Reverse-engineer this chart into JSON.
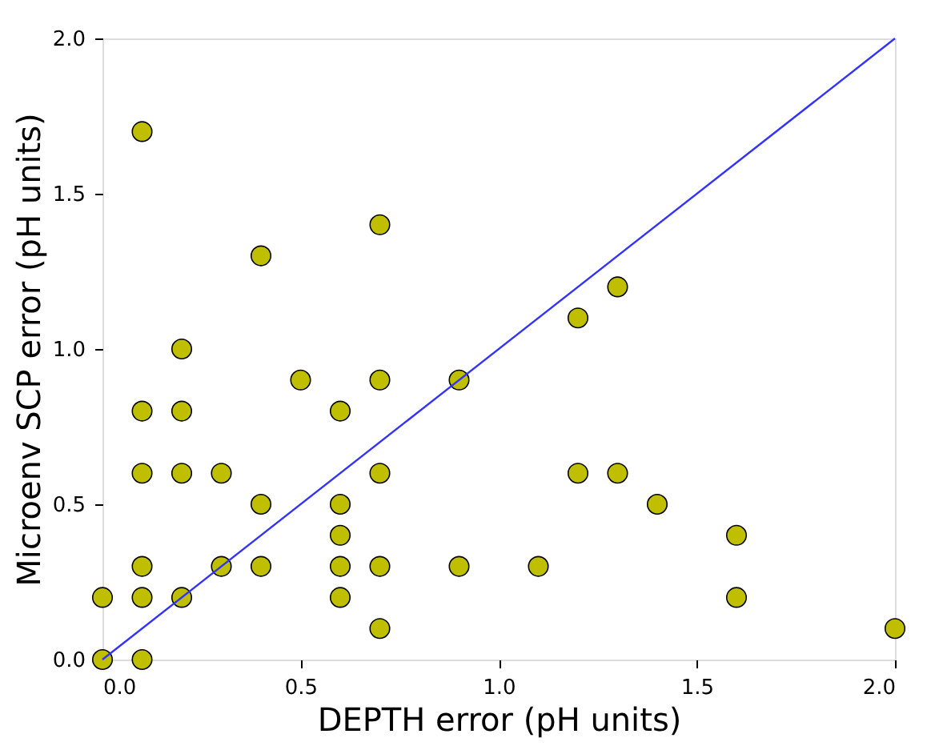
{
  "chart_data": {
    "type": "scatter",
    "xlabel": "DEPTH error (pH units)",
    "ylabel": "Microenv SCP error (pH units)",
    "xlim": [
      0,
      2
    ],
    "ylim": [
      0,
      2
    ],
    "xticks": [
      {
        "value": 0,
        "label": "0.0"
      },
      {
        "value": 0.5,
        "label": "0.5"
      },
      {
        "value": 1,
        "label": "1.0"
      },
      {
        "value": 1.5,
        "label": "1.5"
      },
      {
        "value": 2,
        "label": "2.0"
      }
    ],
    "yticks": [
      {
        "value": 0,
        "label": "0.0"
      },
      {
        "value": 0.5,
        "label": "0.5"
      },
      {
        "value": 1,
        "label": "1.0"
      },
      {
        "value": 1.5,
        "label": "1.5"
      },
      {
        "value": 2,
        "label": "2.0"
      }
    ],
    "grid": false,
    "series": [
      {
        "type": "scatter",
        "color": "#bfbf00",
        "marker": "circle",
        "x": [
          0,
          0,
          0.1,
          0.1,
          0.1,
          0.1,
          0.1,
          0.1,
          0.2,
          0.2,
          0.2,
          0.2,
          0.3,
          0.3,
          0.4,
          0.4,
          0.4,
          0.5,
          0.6,
          0.6,
          0.6,
          0.6,
          0.6,
          0.7,
          0.7,
          0.7,
          0.7,
          0.7,
          0.9,
          0.9,
          1.1,
          1.2,
          1.2,
          1.3,
          1.3,
          1.4,
          1.6,
          1.6,
          2.0
        ],
        "values": [
          0.2,
          0,
          1.7,
          0.8,
          0.6,
          0.3,
          0.2,
          0,
          1.0,
          0.8,
          0.6,
          0.2,
          0.6,
          0.3,
          1.3,
          0.5,
          0.3,
          0.9,
          0.8,
          0.5,
          0.4,
          0.3,
          0.2,
          1.4,
          0.9,
          0.6,
          0.3,
          0.1,
          0.9,
          0.3,
          0.3,
          1.1,
          0.6,
          1.2,
          0.6,
          0.5,
          0.4,
          0.2,
          0.1
        ]
      },
      {
        "type": "line",
        "color": "#3333ff",
        "line_style": "solid",
        "x": [
          0,
          2
        ],
        "values": [
          0,
          2
        ]
      }
    ]
  }
}
